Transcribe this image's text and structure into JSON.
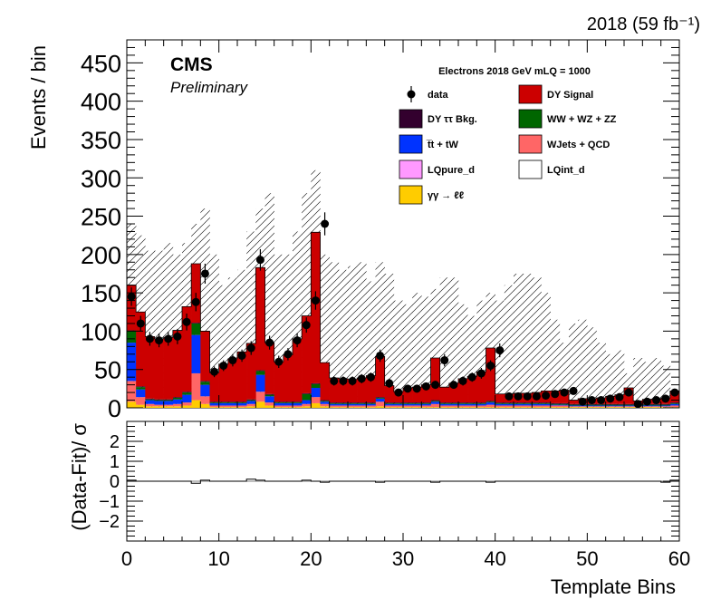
{
  "chart_data": {
    "type": "bar",
    "stacked": true,
    "title_right": "2018 (59 fb⁻¹)",
    "experiment": "CMS",
    "status": "Preliminary",
    "legend_header": "Electrons 2018  GeV mLQ = 1000",
    "legend_placement": "top-right",
    "xlabel": "Template Bins",
    "ylabel": "Events / bin",
    "ratio_ylabel": "(Data-Fit)/ σ",
    "xlim": [
      0,
      60
    ],
    "ylim": [
      0,
      480
    ],
    "ratio_ylim": [
      -3,
      3
    ],
    "x_ticks": [
      "0",
      "10",
      "20",
      "30",
      "40",
      "50",
      "60"
    ],
    "y_ticks": [
      "0",
      "50",
      "100",
      "150",
      "200",
      "250",
      "300",
      "350",
      "400",
      "450"
    ],
    "ratio_y_ticks": [
      "2",
      "1",
      "0",
      "−1",
      "−2"
    ],
    "legend": [
      {
        "label": "data",
        "kind": "marker",
        "color": "#000000"
      },
      {
        "label": "DY Signal",
        "kind": "box",
        "color": "#cc0000"
      },
      {
        "label": "DY  ττ Bkg.",
        "kind": "box",
        "color": "#33002e"
      },
      {
        "label": "WW + WZ + ZZ",
        "kind": "box",
        "color": "#006600"
      },
      {
        "label": "t̅t + tW",
        "kind": "box",
        "color": "#0033ff"
      },
      {
        "label": "WJets + QCD",
        "kind": "box",
        "color": "#ff6666"
      },
      {
        "label": "LQpure_d",
        "kind": "box",
        "color": "#ff99ff"
      },
      {
        "label": "LQint_d",
        "kind": "box",
        "color": "#ffffff"
      },
      {
        "label": "γγ → ℓℓ",
        "kind": "box",
        "color": "#ffcc00"
      }
    ],
    "series": [
      {
        "name": "γγ → ℓℓ",
        "color": "#ffcc00",
        "values": [
          8,
          4,
          2,
          2,
          2,
          2,
          3,
          10,
          5,
          1,
          1,
          1,
          1,
          2,
          8,
          3,
          1,
          1,
          1,
          2,
          6,
          2,
          1,
          1,
          1,
          1,
          1,
          2,
          1,
          1,
          1,
          1,
          1,
          1,
          1,
          1,
          1,
          1,
          1,
          1,
          1,
          1,
          1,
          1,
          1,
          1,
          1,
          1,
          1,
          1,
          1,
          1,
          1,
          1,
          1,
          1,
          1,
          1,
          1,
          1
        ]
      },
      {
        "name": "WJets + QCD",
        "color": "#ff6666",
        "values": [
          27,
          10,
          3,
          2,
          2,
          3,
          4,
          35,
          10,
          2,
          2,
          2,
          2,
          3,
          13,
          4,
          2,
          2,
          2,
          3,
          8,
          3,
          2,
          2,
          2,
          2,
          2,
          6,
          2,
          2,
          2,
          2,
          2,
          4,
          2,
          2,
          2,
          2,
          2,
          3,
          2,
          2,
          2,
          2,
          2,
          2,
          2,
          2,
          1,
          1,
          1,
          1,
          1,
          1,
          1,
          1,
          1,
          1,
          1,
          2
        ]
      },
      {
        "name": "t̅t + tW",
        "color": "#0033ff",
        "values": [
          50,
          10,
          5,
          5,
          5,
          6,
          10,
          50,
          15,
          3,
          3,
          3,
          3,
          4,
          22,
          8,
          3,
          3,
          3,
          5,
          12,
          3,
          2,
          2,
          2,
          2,
          2,
          4,
          2,
          2,
          2,
          2,
          2,
          3,
          2,
          2,
          2,
          2,
          2,
          3,
          2,
          2,
          2,
          2,
          2,
          2,
          1,
          1,
          1,
          1,
          1,
          1,
          1,
          1,
          1,
          1,
          1,
          1,
          1,
          2
        ]
      },
      {
        "name": "WW + WZ + ZZ",
        "color": "#006600",
        "values": [
          15,
          3,
          1,
          1,
          1,
          2,
          3,
          15,
          4,
          1,
          1,
          1,
          1,
          1,
          5,
          2,
          1,
          1,
          1,
          8,
          5,
          1,
          1,
          1,
          1,
          1,
          1,
          1,
          1,
          1,
          1,
          1,
          1,
          1,
          1,
          1,
          1,
          1,
          1,
          1,
          1,
          1,
          1,
          1,
          1,
          1,
          1,
          1,
          1,
          1,
          1,
          1,
          1,
          1,
          1,
          1,
          1,
          1,
          1,
          1
        ]
      },
      {
        "name": "DY  ττ Bkg.",
        "color": "#33002e",
        "values": [
          1,
          1,
          1,
          1,
          1,
          1,
          1,
          1,
          1,
          1,
          1,
          1,
          1,
          1,
          1,
          1,
          1,
          1,
          1,
          1,
          1,
          1,
          1,
          1,
          1,
          1,
          1,
          1,
          1,
          1,
          1,
          1,
          1,
          1,
          1,
          1,
          1,
          1,
          1,
          1,
          1,
          1,
          1,
          1,
          1,
          1,
          1,
          1,
          1,
          1,
          1,
          1,
          1,
          1,
          1,
          1,
          1,
          1,
          1,
          1
        ]
      },
      {
        "name": "DY Signal",
        "color": "#cc0000",
        "values": [
          59,
          97,
          81,
          79,
          81,
          87,
          111,
          77,
          65,
          38,
          49,
          56,
          65,
          73,
          134,
          67,
          52,
          61,
          82,
          101,
          197,
          49,
          32,
          31,
          30,
          32,
          35,
          53,
          22,
          14,
          19,
          20,
          23,
          55,
          20,
          25,
          31,
          34,
          40,
          69,
          11,
          11,
          12,
          12,
          13,
          15,
          16,
          17,
          5,
          7,
          7,
          8,
          10,
          12,
          21,
          4,
          6,
          6,
          8,
          15
        ]
      }
    ],
    "x": [
      0.5,
      1.5,
      2.5,
      3.5,
      4.5,
      5.5,
      6.5,
      7.5,
      8.5,
      9.5,
      10.5,
      11.5,
      12.5,
      13.5,
      14.5,
      15.5,
      16.5,
      17.5,
      18.5,
      19.5,
      20.5,
      21.5,
      22.5,
      23.5,
      24.5,
      25.5,
      26.5,
      27.5,
      28.5,
      29.5,
      30.5,
      31.5,
      32.5,
      33.5,
      34.5,
      35.5,
      36.5,
      37.5,
      38.5,
      39.5,
      40.5,
      41.5,
      42.5,
      43.5,
      44.5,
      45.5,
      46.5,
      47.5,
      48.5,
      49.5,
      50.5,
      51.5,
      52.5,
      53.5,
      54.5,
      55.5,
      56.5,
      57.5,
      58.5,
      59.5
    ],
    "data": [
      145,
      110,
      90,
      88,
      90,
      93,
      112,
      138,
      175,
      47,
      55,
      62,
      68,
      78,
      193,
      85,
      60,
      70,
      88,
      108,
      140,
      240,
      35,
      35,
      35,
      38,
      40,
      68,
      32,
      20,
      25,
      25,
      28,
      30,
      62,
      30,
      35,
      40,
      45,
      55,
      75,
      15,
      15,
      15,
      15,
      16,
      18,
      20,
      22,
      8,
      10,
      10,
      12,
      14,
      20,
      5,
      8,
      10,
      12,
      20
    ],
    "data_err": [
      12,
      10,
      9,
      9,
      9,
      10,
      11,
      12,
      13,
      7,
      7,
      8,
      8,
      9,
      14,
      9,
      8,
      8,
      9,
      10,
      12,
      15,
      6,
      6,
      6,
      6,
      6,
      8,
      6,
      4,
      5,
      5,
      5,
      5,
      8,
      5,
      6,
      6,
      7,
      7,
      9,
      4,
      4,
      4,
      4,
      4,
      4,
      4,
      5,
      3,
      3,
      3,
      3,
      4,
      4,
      2,
      3,
      3,
      3,
      4
    ],
    "uncertainty_upper": [
      240,
      225,
      205,
      205,
      215,
      200,
      215,
      240,
      260,
      200,
      160,
      170,
      180,
      230,
      260,
      280,
      200,
      200,
      230,
      280,
      310,
      200,
      190,
      180,
      185,
      190,
      165,
      190,
      175,
      140,
      135,
      150,
      145,
      155,
      170,
      170,
      135,
      120,
      140,
      150,
      140,
      160,
      175,
      175,
      170,
      150,
      115,
      85,
      110,
      115,
      105,
      85,
      70,
      75,
      45,
      65,
      60,
      65,
      55,
      20
    ],
    "ratio": [
      0.05,
      0.0,
      0.0,
      0.0,
      0.0,
      0.0,
      0.0,
      -0.1,
      0.05,
      0.0,
      0.0,
      0.0,
      0.0,
      0.1,
      0.05,
      0.0,
      0.0,
      0.0,
      0.0,
      0.05,
      0.0,
      -0.05,
      0.0,
      0.0,
      0.0,
      0.0,
      0.0,
      -0.05,
      0.0,
      0.0,
      0.0,
      0.0,
      0.0,
      -0.05,
      0.0,
      0.0,
      0.0,
      0.0,
      0.0,
      -0.05,
      0.0,
      0.0,
      0.0,
      0.0,
      0.0,
      0.0,
      0.0,
      0.0,
      0.0,
      0.0,
      0.0,
      0.0,
      0.0,
      0.0,
      0.0,
      0.0,
      0.0,
      0.0,
      -0.05,
      0.05
    ]
  }
}
